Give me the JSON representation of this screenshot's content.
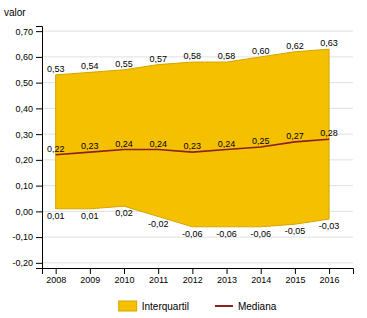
{
  "chart_data": {
    "type": "area",
    "y_label": "valor",
    "x": [
      2008,
      2009,
      2010,
      2011,
      2012,
      2013,
      2014,
      2015,
      2016
    ],
    "xlim": [
      2007.6,
      2016.7
    ],
    "xticks": [
      2008,
      2009,
      2010,
      2011,
      2012,
      2013,
      2014,
      2015,
      2016
    ],
    "ylim": [
      -0.22,
      0.72
    ],
    "yticks": [
      {
        "value": -0.2,
        "label": "-0,20"
      },
      {
        "value": -0.1,
        "label": "-0,10"
      },
      {
        "value": 0.0,
        "label": "0,00"
      },
      {
        "value": 0.1,
        "label": "0,10"
      },
      {
        "value": 0.2,
        "label": "0,20"
      },
      {
        "value": 0.3,
        "label": "0,30"
      },
      {
        "value": 0.4,
        "label": "0,40"
      },
      {
        "value": 0.5,
        "label": "0,50"
      },
      {
        "value": 0.6,
        "label": "0,60"
      },
      {
        "value": 0.7,
        "label": "0,70"
      }
    ],
    "grid": true,
    "legend": "bottom",
    "data_labels": true,
    "series": [
      {
        "name": "Interquartil",
        "type": "area",
        "color": "#F5C000",
        "upper": [
          0.53,
          0.54,
          0.55,
          0.57,
          0.58,
          0.58,
          0.6,
          0.62,
          0.63
        ],
        "upper_labels": [
          "0,53",
          "0,54",
          "0,55",
          "0,57",
          "0,58",
          "0,58",
          "0,60",
          "0,62",
          "0,63"
        ],
        "lower": [
          0.01,
          0.01,
          0.02,
          -0.02,
          -0.06,
          -0.06,
          -0.06,
          -0.05,
          -0.03
        ],
        "lower_labels": [
          "0,01",
          "0,01",
          "0,02",
          "-0,02",
          "-0,06",
          "-0,06",
          "-0,06",
          "-0,05",
          "-0,03"
        ]
      },
      {
        "name": "Mediana",
        "type": "line",
        "color": "#8B2020",
        "values": [
          0.22,
          0.23,
          0.24,
          0.24,
          0.23,
          0.24,
          0.25,
          0.27,
          0.28
        ],
        "value_labels": [
          "0,22",
          "0,23",
          "0,24",
          "0,24",
          "0,23",
          "0,24",
          "0,25",
          "0,27",
          "0,28"
        ]
      }
    ]
  }
}
